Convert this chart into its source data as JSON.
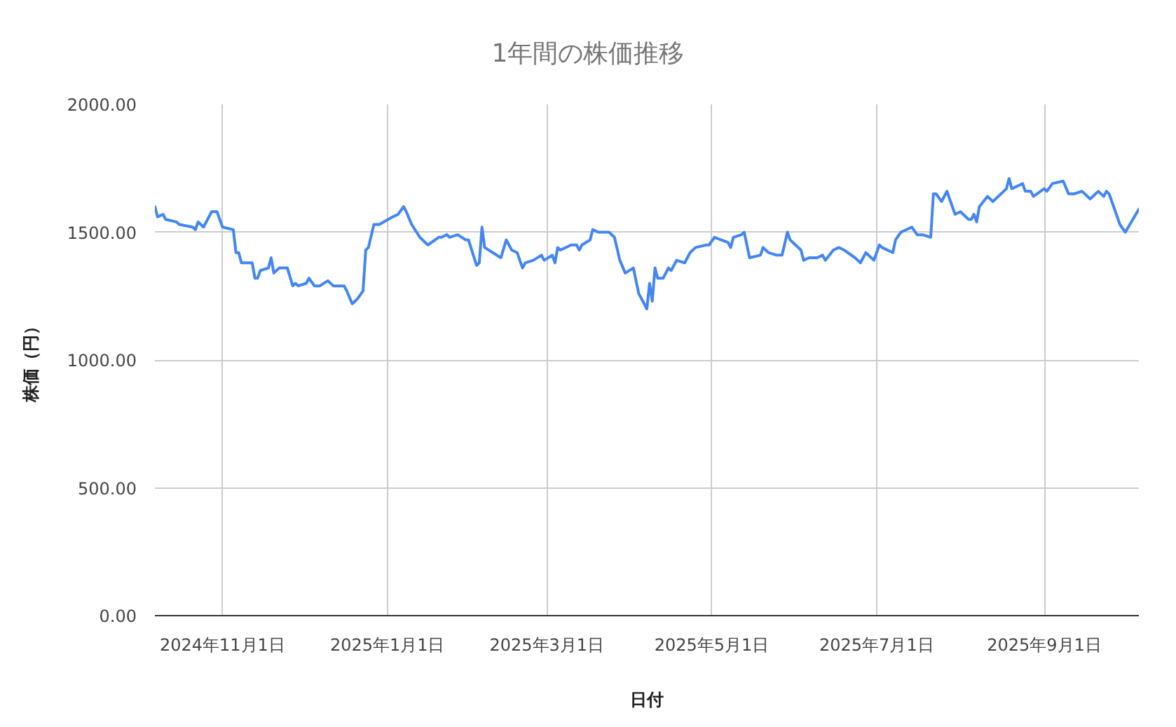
{
  "chart_data": {
    "type": "line",
    "title": "1年間の株価推移",
    "xlabel": "日付",
    "ylabel": "株価（円）",
    "x": [
      "2024-10-07",
      "2024-10-08",
      "2024-10-10",
      "2024-10-11",
      "2024-10-15",
      "2024-10-16",
      "2024-10-21",
      "2024-10-22",
      "2024-10-23",
      "2024-10-25",
      "2024-10-28",
      "2024-10-30",
      "2024-11-01",
      "2024-11-05",
      "2024-11-06",
      "2024-11-07",
      "2024-11-08",
      "2024-11-12",
      "2024-11-13",
      "2024-11-14",
      "2024-11-15",
      "2024-11-18",
      "2024-11-19",
      "2024-11-20",
      "2024-11-22",
      "2024-11-25",
      "2024-11-27",
      "2024-11-28",
      "2024-11-29",
      "2024-12-02",
      "2024-12-03",
      "2024-12-05",
      "2024-12-07",
      "2024-12-10",
      "2024-12-12",
      "2024-12-16",
      "2024-12-17",
      "2024-12-19",
      "2024-12-21",
      "2024-12-23",
      "2024-12-24",
      "2024-12-25",
      "2024-12-27",
      "2024-12-29",
      "2025-01-03",
      "2025-01-05",
      "2025-01-07",
      "2025-01-08",
      "2025-01-10",
      "2025-01-13",
      "2025-01-16",
      "2025-01-20",
      "2025-01-21",
      "2025-01-23",
      "2025-01-24",
      "2025-01-27",
      "2025-01-30",
      "2025-01-31",
      "2025-02-03",
      "2025-02-04",
      "2025-02-05",
      "2025-02-06",
      "2025-02-09",
      "2025-02-12",
      "2025-02-14",
      "2025-02-16",
      "2025-02-18",
      "2025-02-20",
      "2025-02-21",
      "2025-02-24",
      "2025-02-27",
      "2025-02-28",
      "2025-03-03",
      "2025-03-04",
      "2025-03-05",
      "2025-03-06",
      "2025-03-10",
      "2025-03-12",
      "2025-03-13",
      "2025-03-14",
      "2025-03-17",
      "2025-03-18",
      "2025-03-20",
      "2025-03-24",
      "2025-03-26",
      "2025-03-28",
      "2025-03-30",
      "2025-04-02",
      "2025-04-04",
      "2025-04-07",
      "2025-04-08",
      "2025-04-09",
      "2025-04-10",
      "2025-04-11",
      "2025-04-13",
      "2025-04-15",
      "2025-04-16",
      "2025-04-18",
      "2025-04-21",
      "2025-04-23",
      "2025-04-25",
      "2025-04-29",
      "2025-04-30",
      "2025-05-02",
      "2025-05-07",
      "2025-05-08",
      "2025-05-09",
      "2025-05-12",
      "2025-05-13",
      "2025-05-15",
      "2025-05-19",
      "2025-05-20",
      "2025-05-22",
      "2025-05-25",
      "2025-05-27",
      "2025-05-29",
      "2025-05-30",
      "2025-06-03",
      "2025-06-04",
      "2025-06-06",
      "2025-06-09",
      "2025-06-11",
      "2025-06-12",
      "2025-06-15",
      "2025-06-17",
      "2025-06-19",
      "2025-06-23",
      "2025-06-24",
      "2025-06-25",
      "2025-06-27",
      "2025-06-30",
      "2025-07-02",
      "2025-07-03",
      "2025-07-07",
      "2025-07-08",
      "2025-07-10",
      "2025-07-14",
      "2025-07-16",
      "2025-07-18",
      "2025-07-21",
      "2025-07-22",
      "2025-07-23",
      "2025-07-25",
      "2025-07-27",
      "2025-07-30",
      "2025-08-01",
      "2025-08-04",
      "2025-08-05",
      "2025-08-06",
      "2025-08-07",
      "2025-08-08",
      "2025-08-11",
      "2025-08-13",
      "2025-08-17",
      "2025-08-18",
      "2025-08-19",
      "2025-08-20",
      "2025-08-24",
      "2025-08-25",
      "2025-08-27",
      "2025-08-28",
      "2025-09-01",
      "2025-09-02",
      "2025-09-04",
      "2025-09-08",
      "2025-09-10",
      "2025-09-12",
      "2025-09-15",
      "2025-09-18",
      "2025-09-21",
      "2025-09-23",
      "2025-09-24",
      "2025-09-25",
      "2025-09-29",
      "2025-10-01",
      "2025-10-06"
    ],
    "series": [
      {
        "color": "#4285f4",
        "values": [
          1600,
          1560,
          1570,
          1550,
          1540,
          1530,
          1520,
          1510,
          1540,
          1520,
          1580,
          1580,
          1520,
          1510,
          1420,
          1420,
          1380,
          1380,
          1320,
          1320,
          1350,
          1360,
          1400,
          1340,
          1360,
          1360,
          1290,
          1300,
          1290,
          1300,
          1320,
          1290,
          1290,
          1310,
          1290,
          1290,
          1270,
          1220,
          1240,
          1270,
          1430,
          1440,
          1530,
          1530,
          1560,
          1570,
          1600,
          1580,
          1530,
          1480,
          1450,
          1480,
          1480,
          1490,
          1480,
          1490,
          1470,
          1470,
          1370,
          1380,
          1520,
          1440,
          1420,
          1400,
          1470,
          1430,
          1420,
          1360,
          1380,
          1390,
          1410,
          1390,
          1410,
          1380,
          1440,
          1430,
          1450,
          1450,
          1430,
          1450,
          1470,
          1510,
          1500,
          1500,
          1480,
          1390,
          1340,
          1360,
          1260,
          1200,
          1300,
          1230,
          1360,
          1320,
          1320,
          1360,
          1350,
          1390,
          1380,
          1420,
          1440,
          1450,
          1450,
          1480,
          1460,
          1440,
          1480,
          1490,
          1500,
          1400,
          1410,
          1440,
          1420,
          1410,
          1410,
          1500,
          1470,
          1430,
          1390,
          1400,
          1400,
          1410,
          1390,
          1430,
          1440,
          1430,
          1400,
          1390,
          1380,
          1420,
          1390,
          1450,
          1440,
          1420,
          1470,
          1500,
          1520,
          1490,
          1490,
          1480,
          1650,
          1650,
          1620,
          1660,
          1570,
          1580,
          1550,
          1550,
          1570,
          1540,
          1600,
          1640,
          1620,
          1660,
          1670,
          1710,
          1670,
          1690,
          1660,
          1660,
          1640,
          1670,
          1660,
          1690,
          1700,
          1650,
          1650,
          1660,
          1630,
          1660,
          1640,
          1660,
          1650,
          1530,
          1500,
          1590
        ]
      }
    ],
    "xlim": [
      "2024-10-07",
      "2025-10-06"
    ],
    "ylim": [
      0,
      2000
    ],
    "xticks": [
      {
        "value": "2024-11-01",
        "label": "2024年11月1日"
      },
      {
        "value": "2025-01-01",
        "label": "2025年1月1日"
      },
      {
        "value": "2025-03-01",
        "label": "2025年3月1日"
      },
      {
        "value": "2025-05-01",
        "label": "2025年5月1日"
      },
      {
        "value": "2025-07-01",
        "label": "2025年7月1日"
      },
      {
        "value": "2025-09-01",
        "label": "2025年9月1日"
      }
    ],
    "yticks": [
      {
        "value": 0,
        "label": "0.00"
      },
      {
        "value": 500,
        "label": "500.00"
      },
      {
        "value": 1000,
        "label": "1000.00"
      },
      {
        "value": 1500,
        "label": "1500.00"
      },
      {
        "value": 2000,
        "label": "2000.00"
      }
    ],
    "grid": true,
    "line_style": "solid"
  }
}
